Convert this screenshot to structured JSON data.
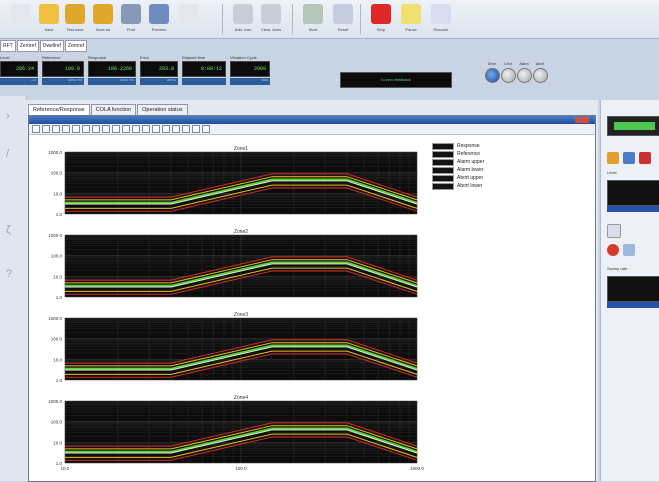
{
  "toolbar": {
    "buttons": [
      {
        "label": "",
        "icon": "doc-icon"
      },
      {
        "label": "Save",
        "icon": "save-icon"
      },
      {
        "label": "Test save",
        "icon": "folder-save-icon"
      },
      {
        "label": "Save as",
        "icon": "folder-saveas-icon"
      },
      {
        "label": "Print",
        "icon": "print-icon"
      },
      {
        "label": "Preview",
        "icon": "preview-icon"
      },
      {
        "label": "",
        "icon": "blank-icon"
      },
      {
        "label": "Add. icon",
        "icon": "edit-icon"
      },
      {
        "label": "Clear. Axes",
        "icon": "tools-icon"
      },
      {
        "label": "Start",
        "icon": "play-icon"
      },
      {
        "label": "Reset",
        "icon": "rewind-icon"
      },
      {
        "label": "Stop",
        "icon": "stop-icon"
      },
      {
        "label": "Pause",
        "icon": "pause-icon"
      },
      {
        "label": "Resume",
        "icon": "resume-icon"
      }
    ]
  },
  "strip_tabs": [
    "RFT",
    "Zeroref",
    "Dwellref",
    "Zeroref"
  ],
  "status": [
    {
      "label": "Level",
      "value": "206.24",
      "sub": "mA"
    },
    {
      "label": "Reference",
      "value": "100.0",
      "sub": "10001.700"
    },
    {
      "label": "Response",
      "value": "106.2266",
      "sub": "10001.700"
    },
    {
      "label": "Error",
      "value": "293.0",
      "sub": "285.5a"
    },
    {
      "label": "Elapsed time",
      "value": "0:00:12",
      "sub": ""
    },
    {
      "label": "Vibration Cycle",
      "value": "2009",
      "sub": "3009"
    }
  ],
  "message": "Io zero feedback",
  "leds": [
    {
      "label": "Drive",
      "on": true
    },
    {
      "label": "Limit",
      "on": false
    },
    {
      "label": "Alarm",
      "on": false
    },
    {
      "label": "Abort",
      "on": false
    }
  ],
  "panel_tabs": [
    "Reference/Response",
    "COLA function",
    "Operation status"
  ],
  "legend": [
    "Response",
    "Reference",
    "Alarm upper",
    "Alarm lower",
    "Abort upper",
    "Abort lower"
  ],
  "colors": {
    "response": "#5fd03c",
    "reference": "#f0f0f0",
    "alarm": "#e8c018",
    "abort": "#d82828",
    "plot_bg": "#0c0c0c"
  },
  "right_panel": {
    "label_level": "Level",
    "label_sweep": "Sweep rate"
  },
  "chart_data": [
    {
      "type": "line",
      "title": "Zone1",
      "xlim": [
        10,
        1000
      ],
      "ylim": [
        1,
        1000
      ],
      "x_scale": "log",
      "y_scale": "log",
      "yticks": [
        "1000.0",
        "100.0",
        "10.0",
        "1.0"
      ],
      "series": [
        {
          "name": "Reference",
          "x": [
            10,
            40,
            150,
            400,
            1000
          ],
          "y": [
            3,
            3,
            40,
            40,
            3
          ]
        }
      ]
    },
    {
      "type": "line",
      "title": "Zone2",
      "xlim": [
        10,
        1000
      ],
      "ylim": [
        1,
        1000
      ],
      "x_scale": "log",
      "y_scale": "log",
      "yticks": [
        "1000.0",
        "100.0",
        "10.0",
        "1.0"
      ],
      "series": [
        {
          "name": "Reference",
          "x": [
            10,
            40,
            150,
            400,
            1000
          ],
          "y": [
            3,
            3,
            40,
            40,
            3
          ]
        }
      ]
    },
    {
      "type": "line",
      "title": "Zone3",
      "xlim": [
        10,
        1000
      ],
      "ylim": [
        1,
        1000
      ],
      "x_scale": "log",
      "y_scale": "log",
      "yticks": [
        "1000.0",
        "100.0",
        "10.0",
        "1.0"
      ],
      "series": [
        {
          "name": "Reference",
          "x": [
            10,
            40,
            150,
            400,
            1000
          ],
          "y": [
            3,
            3,
            40,
            40,
            3
          ]
        }
      ]
    },
    {
      "type": "line",
      "title": "Zone4",
      "xlim": [
        10,
        1000
      ],
      "ylim": [
        1,
        1000
      ],
      "x_scale": "log",
      "y_scale": "log",
      "yticks": [
        "1000.0",
        "100.0",
        "10.0",
        "1.0"
      ],
      "xticks": [
        "10.0",
        "100.0",
        "1000.0"
      ],
      "series": [
        {
          "name": "Reference",
          "x": [
            10,
            40,
            150,
            400,
            1000
          ],
          "y": [
            3,
            3,
            40,
            40,
            3
          ]
        }
      ]
    }
  ]
}
